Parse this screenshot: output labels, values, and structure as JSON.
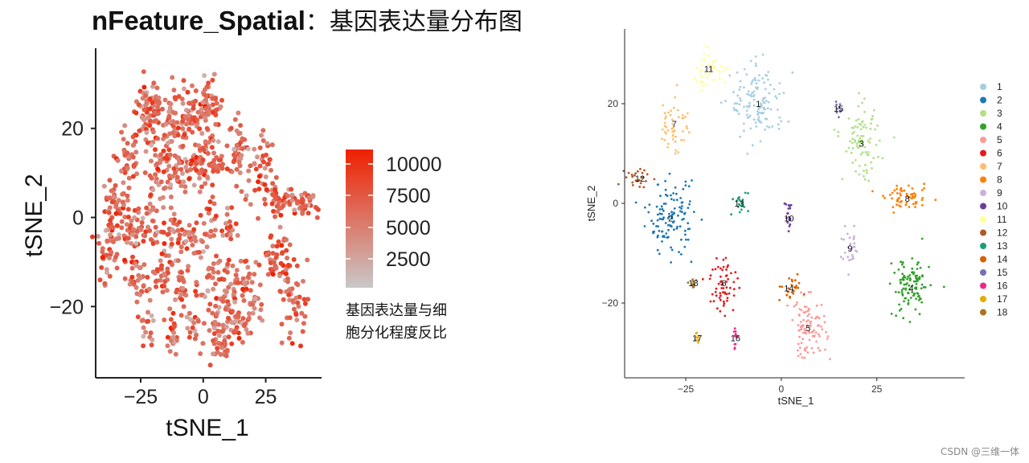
{
  "title": {
    "main": "nFeature_Spatial",
    "suffix": "：基因表达量分布图"
  },
  "watermark": "CSDN @三维一体",
  "chart_data": [
    {
      "type": "scatter",
      "name": "left",
      "xlabel": "tSNE_1",
      "ylabel": "tSNE_2",
      "xticks": [
        -25,
        0,
        25
      ],
      "yticks": [
        20,
        0,
        -20
      ],
      "xlim": [
        -43,
        47
      ],
      "ylim": [
        -36,
        38
      ],
      "legend": {
        "ticks": [
          "10000",
          "7500",
          "5000",
          "2500"
        ],
        "caption_lines": [
          "基因表达量与细",
          "胞分化程度反比"
        ],
        "color_low": "#c8c8c8",
        "color_high": "#f02000",
        "position": "right"
      },
      "grid": false
    },
    {
      "type": "scatter",
      "name": "right",
      "xlabel": "tSNE_1",
      "ylabel": "tSNE_2",
      "xticks": [
        -25,
        0,
        25
      ],
      "yticks": [
        20,
        0,
        -20
      ],
      "xlim": [
        -41,
        48
      ],
      "ylim": [
        -35,
        35
      ],
      "grid": false,
      "legend_position": "right",
      "clusters": [
        {
          "name": "1",
          "color": "#a6cee3",
          "label_x": -6,
          "label_y": 20
        },
        {
          "name": "2",
          "color": "#1f78b4",
          "label_x": -29,
          "label_y": -3
        },
        {
          "name": "3",
          "color": "#b2df8a",
          "label_x": 21,
          "label_y": 12
        },
        {
          "name": "4",
          "color": "#33a02c",
          "label_x": 34,
          "label_y": -17
        },
        {
          "name": "5",
          "color": "#fb9a99",
          "label_x": 7,
          "label_y": -25
        },
        {
          "name": "6",
          "color": "#e31a1c",
          "label_x": -15,
          "label_y": -16
        },
        {
          "name": "7",
          "color": "#fdbf6f",
          "label_x": -28,
          "label_y": 16
        },
        {
          "name": "8",
          "color": "#ff7f00",
          "label_x": 33,
          "label_y": 1
        },
        {
          "name": "9",
          "color": "#cab2d6",
          "label_x": 18,
          "label_y": -9
        },
        {
          "name": "10",
          "color": "#6a3d9a",
          "label_x": 2,
          "label_y": -3
        },
        {
          "name": "11",
          "color": "#ffff99",
          "label_x": -19,
          "label_y": 27
        },
        {
          "name": "12",
          "color": "#b15928",
          "label_x": -37,
          "label_y": 5
        },
        {
          "name": "13",
          "color": "#1b9e77",
          "label_x": -11,
          "label_y": 0
        },
        {
          "name": "14",
          "color": "#d95f02",
          "label_x": 2,
          "label_y": -17
        },
        {
          "name": "15",
          "color": "#7570b3",
          "label_x": 15,
          "label_y": 19
        },
        {
          "name": "16",
          "color": "#e7298a",
          "label_x": -12,
          "label_y": -27
        },
        {
          "name": "17",
          "color": "#e6ab02",
          "label_x": -22,
          "label_y": -27
        },
        {
          "name": "18",
          "color": "#a6761d",
          "label_x": -23,
          "label_y": -16
        }
      ]
    }
  ]
}
